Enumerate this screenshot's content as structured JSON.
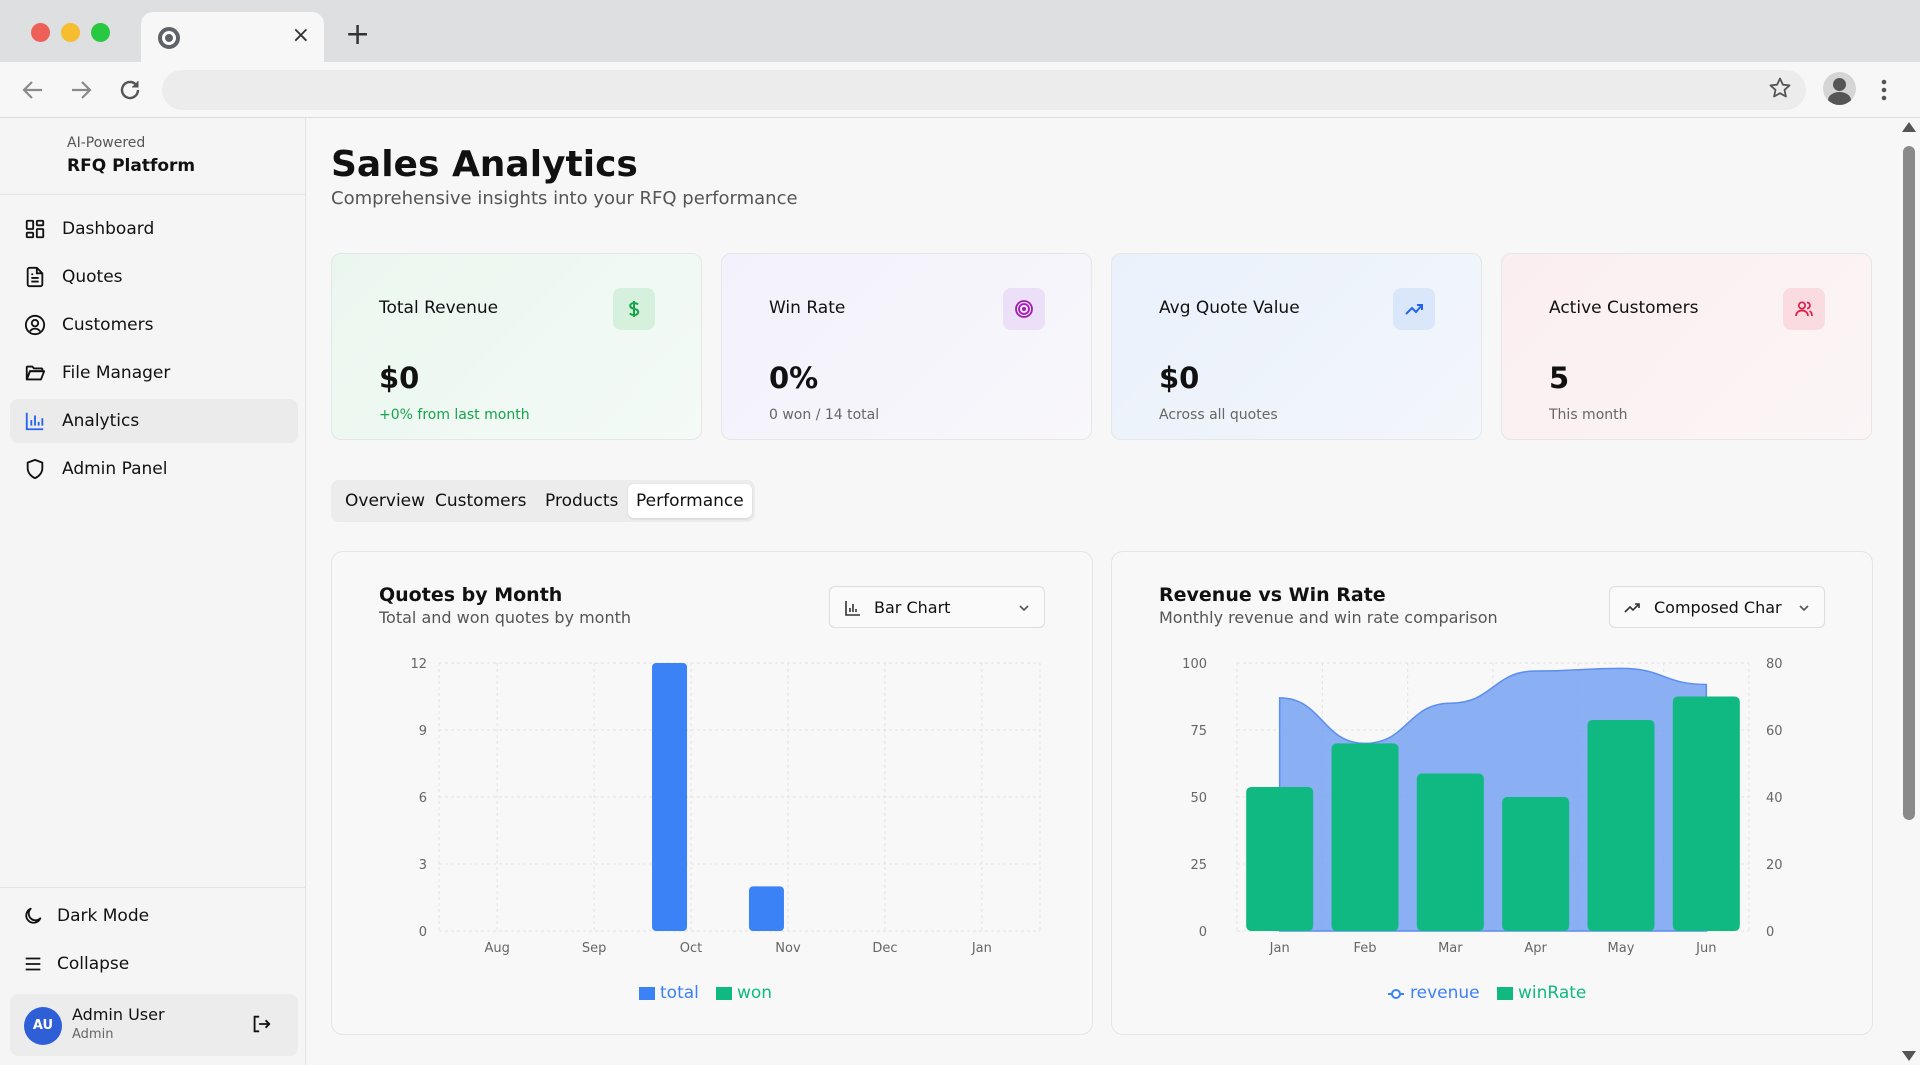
{
  "browser": {
    "tab_close": "×",
    "new_tab": "+"
  },
  "sidebar": {
    "brand_sub": "AI-Powered",
    "brand_title": "RFQ Platform",
    "items": [
      {
        "label": "Dashboard",
        "icon": "dashboard-icon"
      },
      {
        "label": "Quotes",
        "icon": "file-text-icon"
      },
      {
        "label": "Customers",
        "icon": "user-circle-icon"
      },
      {
        "label": "File Manager",
        "icon": "folder-icon"
      },
      {
        "label": "Analytics",
        "icon": "bar-chart-icon",
        "active": true
      },
      {
        "label": "Admin Panel",
        "icon": "shield-icon"
      }
    ],
    "dark_mode": "Dark Mode",
    "collapse": "Collapse",
    "user": {
      "initials": "AU",
      "name": "Admin User",
      "role": "Admin"
    }
  },
  "page": {
    "title": "Sales Analytics",
    "subtitle": "Comprehensive insights into your RFQ performance"
  },
  "stats": [
    {
      "label": "Total Revenue",
      "value": "$0",
      "foot": "+0% from last month",
      "icon": "dollar-icon"
    },
    {
      "label": "Win Rate",
      "value": "0%",
      "foot": "0 won / 14 total",
      "icon": "target-icon"
    },
    {
      "label": "Avg Quote Value",
      "value": "$0",
      "foot": "Across all quotes",
      "icon": "trending-up-icon"
    },
    {
      "label": "Active Customers",
      "value": "5",
      "foot": "This month",
      "icon": "users-icon"
    }
  ],
  "tabs": [
    "Overview",
    "Customers",
    "Products",
    "Performance"
  ],
  "active_tab": "Performance",
  "charts": {
    "quotes": {
      "title": "Quotes by Month",
      "subtitle": "Total and won quotes by month",
      "select": "Bar Chart"
    },
    "revenue": {
      "title": "Revenue vs Win Rate",
      "subtitle": "Monthly revenue and win rate comparison",
      "select": "Composed Char"
    }
  },
  "colors": {
    "blue": "#3b82f6",
    "green": "#10b981",
    "area": "#7ea6f2"
  },
  "chart_data": [
    {
      "type": "bar",
      "categories": [
        "Aug",
        "Sep",
        "Oct",
        "Nov",
        "Dec",
        "Jan"
      ],
      "series": [
        {
          "name": "total",
          "values": [
            0,
            0,
            12,
            2,
            0,
            0
          ]
        },
        {
          "name": "won",
          "values": [
            0,
            0,
            0,
            0,
            0,
            0
          ]
        }
      ],
      "ylim": [
        0,
        12
      ],
      "yticks": [
        0,
        3,
        6,
        9,
        12
      ],
      "grid": true,
      "legend": "bottom"
    },
    {
      "type": "bar",
      "categories": [
        "Jan",
        "Feb",
        "Mar",
        "Apr",
        "May",
        "Jun"
      ],
      "series": [
        {
          "name": "revenue",
          "type": "area",
          "axis": "left",
          "values": [
            87,
            70,
            85,
            97,
            98,
            92
          ]
        },
        {
          "name": "winRate",
          "type": "bar",
          "axis": "right",
          "values": [
            43,
            56,
            47,
            40,
            63,
            70
          ]
        }
      ],
      "ylim_left": [
        0,
        100
      ],
      "yticks_left": [
        0,
        25,
        50,
        75,
        100
      ],
      "ylim_right": [
        0,
        80
      ],
      "yticks_right": [
        0,
        20,
        40,
        60,
        80
      ],
      "grid": true,
      "legend": "bottom"
    }
  ]
}
